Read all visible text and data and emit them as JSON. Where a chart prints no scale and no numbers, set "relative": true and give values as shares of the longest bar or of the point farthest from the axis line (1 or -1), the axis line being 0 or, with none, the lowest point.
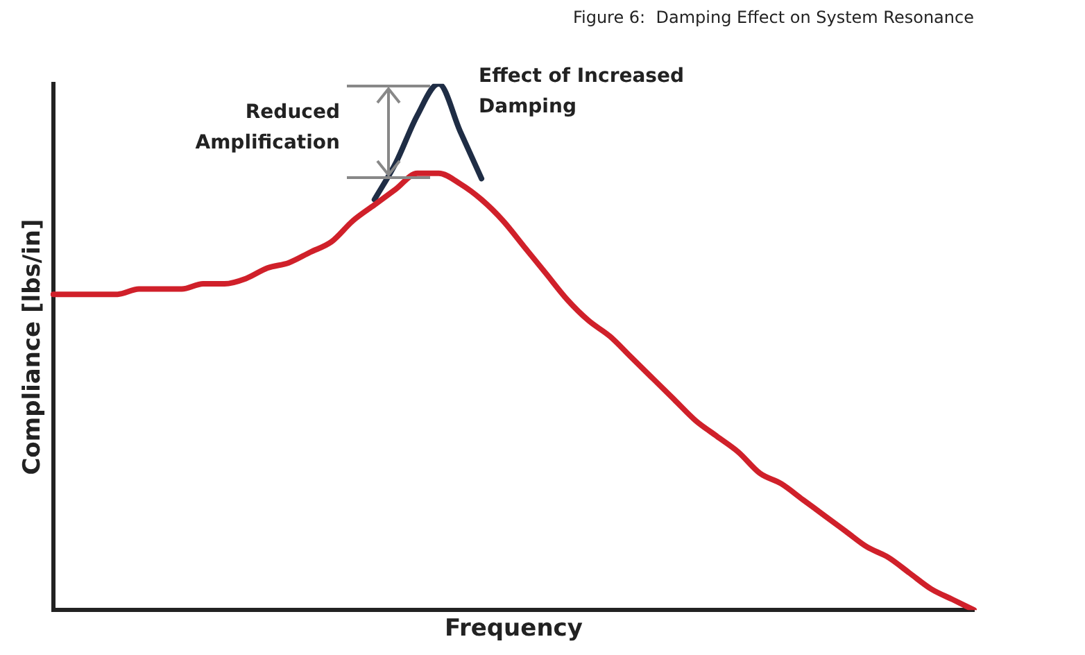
{
  "chart_data": {
    "type": "line",
    "title": "Figure 6:  Damping Effect on System Resonance",
    "xlabel": "Frequency",
    "ylabel": "Compliance [lbs/in]",
    "relative": true,
    "grid": false,
    "legend": false,
    "marker": "none",
    "line_style": "solid",
    "annotations": [
      "Reduced Amplification",
      "Effect of Increased Damping"
    ],
    "categories": [
      null,
      null,
      null,
      null,
      null,
      null,
      null,
      null,
      null,
      null,
      null,
      null,
      null,
      null,
      null,
      null,
      null,
      null,
      null,
      null,
      null,
      null,
      null,
      null,
      null,
      null,
      null,
      null,
      null,
      null,
      null,
      null,
      null,
      null,
      null,
      null,
      null,
      null,
      null,
      null,
      null,
      null,
      null,
      null
    ],
    "series": [
      {
        "color": "#1f2d45",
        "values": [
          null,
          null,
          null,
          null,
          null,
          null,
          null,
          null,
          null,
          null,
          null,
          null,
          null,
          null,
          null,
          0.78,
          0.85,
          0.94,
          1,
          0.91,
          0.82,
          null,
          null,
          null,
          null,
          null,
          null,
          null,
          null,
          null,
          null,
          null,
          null,
          null,
          null,
          null,
          null,
          null,
          null,
          null,
          null,
          null,
          null,
          null
        ]
      },
      {
        "color": "#d0202a",
        "values": [
          0.6,
          0.6,
          0.6,
          0.6,
          0.61,
          0.61,
          0.61,
          0.62,
          0.62,
          0.63,
          0.65,
          0.66,
          0.68,
          0.7,
          0.74,
          0.77,
          0.8,
          0.83,
          0.83,
          0.81,
          0.78,
          0.74,
          0.69,
          0.64,
          0.59,
          0.55,
          0.52,
          0.48,
          0.44,
          0.4,
          0.36,
          0.33,
          0.3,
          0.26,
          0.24,
          0.21,
          0.18,
          0.15,
          0.12,
          0.1,
          0.07,
          0.04,
          0.02,
          0
        ]
      }
    ]
  }
}
